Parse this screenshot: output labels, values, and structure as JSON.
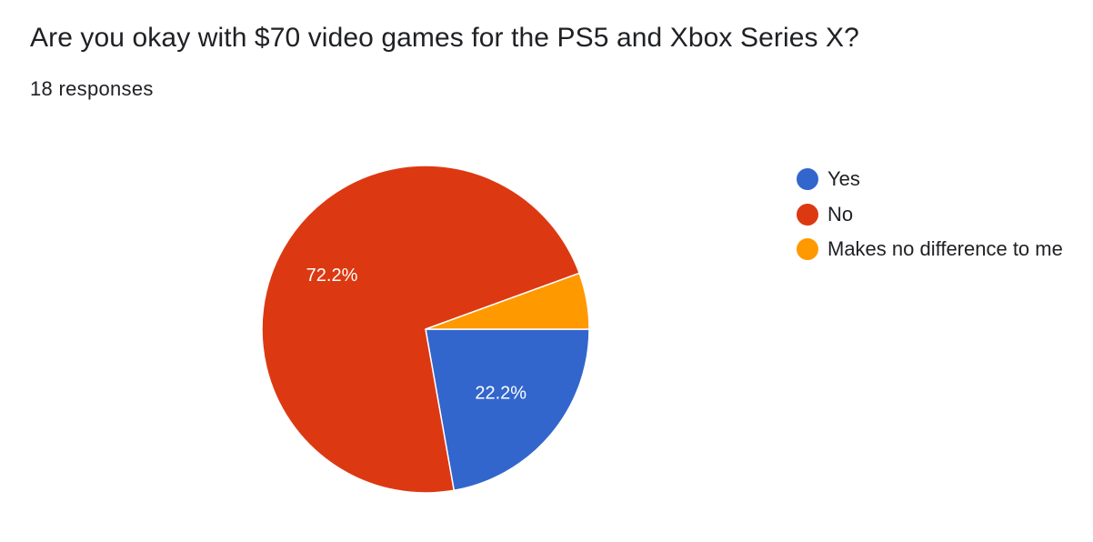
{
  "question": {
    "title": "Are you okay with $70 video games for the PS5 and Xbox Series X?",
    "responses_text": "18 responses"
  },
  "chart_data": {
    "type": "pie",
    "title": "Are you okay with $70 video games for the PS5 and Xbox Series X?",
    "total_responses": 18,
    "slices": [
      {
        "label": "Yes",
        "value": 4,
        "percent_label": "22.2%",
        "color": "#3366cc"
      },
      {
        "label": "No",
        "value": 13,
        "percent_label": "72.2%",
        "color": "#dc3912"
      },
      {
        "label": "Makes no difference to me",
        "value": 1,
        "percent_label": "",
        "color": "#ff9900"
      }
    ],
    "legend_position": "right"
  }
}
